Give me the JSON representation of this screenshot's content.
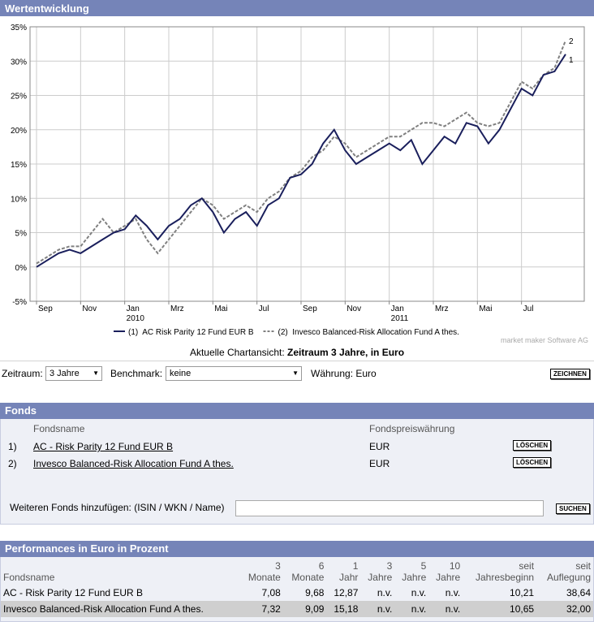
{
  "header": {
    "title": "Wertentwicklung"
  },
  "chart_data": {
    "type": "line",
    "categories": [
      "Sep",
      null,
      null,
      null,
      "Nov",
      null,
      null,
      null,
      "Jan 2010",
      null,
      null,
      null,
      "Mrz",
      null,
      null,
      null,
      "Mai",
      null,
      null,
      null,
      "Jul",
      null,
      null,
      null,
      "Sep",
      null,
      null,
      null,
      "Nov",
      null,
      null,
      null,
      "Jan 2011",
      null,
      null,
      null,
      "Mrz",
      null,
      null,
      null,
      "Mai",
      null,
      null,
      null,
      "Jul",
      null,
      null,
      null,
      null
    ],
    "series": [
      {
        "name": "(1)  AC Risk Parity 12 Fund EUR B",
        "end_label": "1",
        "color": "#1a1f5c",
        "values": [
          0,
          1,
          2,
          2.5,
          2,
          3,
          4,
          5,
          5.5,
          7.5,
          6,
          4,
          6,
          7,
          9,
          10,
          8,
          5,
          7,
          8,
          6,
          9,
          10,
          13,
          13.5,
          15,
          18,
          20,
          17,
          15,
          16,
          17,
          18,
          17,
          18.5,
          15,
          17,
          19,
          18,
          21,
          20.5,
          18,
          20,
          23,
          26,
          25,
          28,
          28.5,
          31
        ]
      },
      {
        "name": "(2)  Invesco Balanced-Risk Allocation Fund A thes.",
        "end_label": "2",
        "color": "#808080",
        "values": [
          0.5,
          1.5,
          2.5,
          3,
          3,
          5,
          7,
          5,
          6,
          7,
          4,
          2,
          4,
          6,
          8,
          10,
          9,
          7,
          8,
          9,
          8,
          10,
          11,
          13,
          14,
          16,
          17,
          19,
          18,
          16,
          17,
          18,
          19,
          19,
          20,
          21,
          21,
          20.5,
          21.5,
          22.5,
          21,
          20.5,
          21,
          24,
          27,
          26,
          28,
          29,
          33
        ]
      }
    ],
    "ylim": [
      -5,
      35
    ],
    "yticks": [
      {
        "value": -5,
        "label": "-5%"
      },
      {
        "value": 0,
        "label": "0%"
      },
      {
        "value": 5,
        "label": "5%"
      },
      {
        "value": 10,
        "label": "10%"
      },
      {
        "value": 15,
        "label": "15%"
      },
      {
        "value": 20,
        "label": "20%"
      },
      {
        "value": 25,
        "label": "25%"
      },
      {
        "value": 30,
        "label": "30%"
      },
      {
        "value": 35,
        "label": "35%"
      }
    ],
    "grid": true,
    "credit": "market maker Software AG",
    "caption_label": "Aktuelle Chartansicht:",
    "caption_value": "Zeitraum 3 Jahre, in Euro"
  },
  "controls": {
    "period_label": "Zeitraum:",
    "period_value": "3 Jahre",
    "benchmark_label": "Benchmark:",
    "benchmark_value": "keine",
    "currency": "Währung: Euro",
    "draw_button": "ZEICHNEN"
  },
  "funds": {
    "title": "Fonds",
    "headers": [
      "Fondsname",
      "Fondspreiswährung"
    ],
    "rows": [
      [
        "1)",
        "AC - Risk Parity 12 Fund EUR B",
        "EUR",
        "LÖSCHEN"
      ],
      [
        "2)",
        "Invesco Balanced-Risk Allocation Fund A thes.",
        "EUR",
        "LÖSCHEN"
      ]
    ],
    "add_label": "Weiteren Fonds hinzufügen: (ISIN / WKN / Name)",
    "search_button": "SUCHEN"
  },
  "performance": {
    "title": "Performances in Euro in Prozent",
    "headers": [
      [
        "Fondsname"
      ],
      [
        "3",
        "Monate"
      ],
      [
        "6",
        "Monate"
      ],
      [
        "1",
        "Jahr"
      ],
      [
        "3",
        "Jahre"
      ],
      [
        "5",
        "Jahre"
      ],
      [
        "10",
        "Jahre"
      ],
      [
        "seit",
        "Jahresbeginn"
      ],
      [
        "seit",
        "Auflegung"
      ]
    ],
    "rows": [
      [
        "AC - Risk Parity 12 Fund EUR B",
        "7,08",
        "9,68",
        "12,87",
        "n.v.",
        "n.v.",
        "n.v.",
        "10,21",
        "38,64"
      ],
      [
        "Invesco Balanced-Risk Allocation Fund A thes.",
        "7,32",
        "9,09",
        "15,18",
        "n.v.",
        "n.v.",
        "n.v.",
        "10,65",
        "32,00"
      ]
    ]
  }
}
